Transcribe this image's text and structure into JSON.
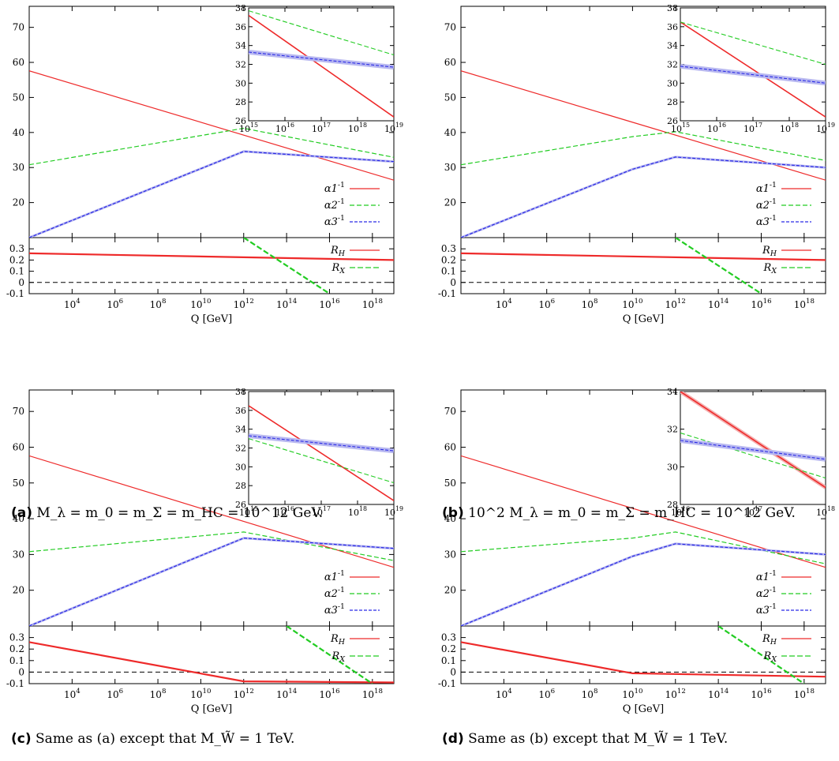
{
  "figure": {
    "xlabel": "Q [GeV]",
    "captions": [
      {
        "tag": "(a)",
        "text": "M_λ = m_0 = m_Σ = m_HC = 10^12 GeV."
      },
      {
        "tag": "(b)",
        "text": "10^2 M_λ = m_0 = m_Σ = m_HC = 10^12 GeV."
      },
      {
        "tag": "(c)",
        "text": "Same as (a) except that M_W̃ = 1 TeV."
      },
      {
        "tag": "(d)",
        "text": "Same as (b) except that M_W̃ = 1 TeV."
      }
    ]
  },
  "colors": {
    "alpha1": "#ee2a2a",
    "alpha2": "#22cc22",
    "alpha3": "#2a2ae6",
    "band": "#b8b8f0",
    "zero": "#000000"
  },
  "chart_data": [
    {
      "type": "line",
      "panel": "(a)",
      "x_scale": "log",
      "xlim": [
        100,
        1e+19
      ],
      "x_ticks": [
        "10^4",
        "10^6",
        "10^8",
        "10^10",
        "10^12",
        "10^14",
        "10^16",
        "10^18"
      ],
      "upper": {
        "ylim": [
          10,
          76
        ],
        "y_ticks": [
          "20",
          "30",
          "40",
          "50",
          "60",
          "70"
        ],
        "series": [
          {
            "name": "α1^-1",
            "x": [
              100,
              1e+19
            ],
            "y": [
              57.6,
              26.4
            ]
          },
          {
            "name": "α2^-1",
            "x": [
              100,
              1000000000000.0,
              1e+19
            ],
            "y": [
              30.8,
              41.2,
              32.9
            ]
          },
          {
            "name": "α3^-1",
            "x": [
              100,
              1000000000000.0,
              1e+19
            ],
            "y": [
              10.0,
              34.6,
              31.7
            ]
          }
        ]
      },
      "lower": {
        "ylim": [
          -0.1,
          0.4
        ],
        "y_ticks": [
          "-0.1",
          "0",
          "0.1",
          "0.2",
          "0.3"
        ],
        "series": [
          {
            "name": "R_H",
            "x": [
              100,
              1e+19
            ],
            "y": [
              0.26,
              0.2
            ]
          },
          {
            "name": "R_X",
            "x": [
              1000000000000.0,
              1e+16
            ],
            "y": [
              0.4,
              -0.1
            ]
          }
        ]
      },
      "inset": {
        "xlim": [
          1000000000000000.0,
          1e+19
        ],
        "x_ticks": [
          "10^15",
          "10^16",
          "10^17",
          "10^18",
          "10^19"
        ],
        "ylim": [
          26,
          38
        ],
        "y_ticks": [
          "26",
          "28",
          "30",
          "32",
          "34",
          "36",
          "38"
        ],
        "series": [
          {
            "name": "α1^-1",
            "x": [
              1000000000000000.0,
              1e+19
            ],
            "y": [
              37.2,
              26.4
            ]
          },
          {
            "name": "α2^-1",
            "x": [
              1000000000000000.0,
              1e+19
            ],
            "y": [
              37.7,
              33.0
            ]
          },
          {
            "name": "α3^-1",
            "x": [
              1000000000000000.0,
              1e+19
            ],
            "y": [
              33.3,
              31.7
            ]
          }
        ]
      }
    },
    {
      "type": "line",
      "panel": "(b)",
      "x_scale": "log",
      "xlim": [
        100,
        1e+19
      ],
      "x_ticks": [
        "10^4",
        "10^6",
        "10^8",
        "10^10",
        "10^12",
        "10^14",
        "10^16",
        "10^18"
      ],
      "upper": {
        "ylim": [
          10,
          76
        ],
        "y_ticks": [
          "20",
          "30",
          "40",
          "50",
          "60",
          "70"
        ],
        "series": [
          {
            "name": "α1^-1",
            "x": [
              100,
              1e+19
            ],
            "y": [
              57.6,
              26.4
            ]
          },
          {
            "name": "α2^-1",
            "x": [
              100,
              10000000000.0,
              1000000000000.0,
              1e+19
            ],
            "y": [
              30.8,
              38.8,
              40.2,
              32.0
            ]
          },
          {
            "name": "α3^-1",
            "x": [
              100,
              10000000000.0,
              1000000000000.0,
              1e+19
            ],
            "y": [
              10.0,
              29.5,
              33.0,
              30.0
            ]
          }
        ]
      },
      "lower": {
        "ylim": [
          -0.1,
          0.4
        ],
        "y_ticks": [
          "-0.1",
          "0",
          "0.1",
          "0.2",
          "0.3"
        ],
        "series": [
          {
            "name": "R_H",
            "x": [
              100,
              1e+19
            ],
            "y": [
              0.26,
              0.2
            ]
          },
          {
            "name": "R_X",
            "x": [
              1000000000000.0,
              1e+16
            ],
            "y": [
              0.4,
              -0.1
            ]
          }
        ]
      },
      "inset": {
        "xlim": [
          1000000000000000.0,
          1e+19
        ],
        "x_ticks": [
          "10^15",
          "10^16",
          "10^17",
          "10^18",
          "10^19"
        ],
        "ylim": [
          26,
          38
        ],
        "y_ticks": [
          "26",
          "28",
          "30",
          "32",
          "34",
          "36",
          "38"
        ],
        "series": [
          {
            "name": "α1^-1",
            "x": [
              1000000000000000.0,
              1e+19
            ],
            "y": [
              36.5,
              26.4
            ]
          },
          {
            "name": "α2^-1",
            "x": [
              1000000000000000.0,
              1e+19
            ],
            "y": [
              36.5,
              32.0
            ]
          },
          {
            "name": "α3^-1",
            "x": [
              1000000000000000.0,
              1e+19
            ],
            "y": [
              31.8,
              30.0
            ]
          }
        ]
      }
    },
    {
      "type": "line",
      "panel": "(c)",
      "x_scale": "log",
      "xlim": [
        100,
        1e+19
      ],
      "x_ticks": [
        "10^4",
        "10^6",
        "10^8",
        "10^10",
        "10^12",
        "10^14",
        "10^16",
        "10^18"
      ],
      "upper": {
        "ylim": [
          10,
          76
        ],
        "y_ticks": [
          "20",
          "30",
          "40",
          "50",
          "60",
          "70"
        ],
        "series": [
          {
            "name": "α1^-1",
            "x": [
              100,
              1e+19
            ],
            "y": [
              57.6,
              26.4
            ]
          },
          {
            "name": "α2^-1",
            "x": [
              100,
              1000000000000.0,
              1e+19
            ],
            "y": [
              30.8,
              36.3,
              28.3
            ]
          },
          {
            "name": "α3^-1",
            "x": [
              100,
              1000000000000.0,
              1e+19
            ],
            "y": [
              10.0,
              34.6,
              31.7
            ]
          }
        ]
      },
      "lower": {
        "ylim": [
          -0.1,
          0.4
        ],
        "y_ticks": [
          "-0.1",
          "0",
          "0.1",
          "0.2",
          "0.3"
        ],
        "series": [
          {
            "name": "R_H",
            "x": [
              100,
              1000000000000.0,
              1e+19
            ],
            "y": [
              0.26,
              -0.08,
              -0.09
            ]
          },
          {
            "name": "R_X",
            "x": [
              100000000000000.0,
              1e+18
            ],
            "y": [
              0.4,
              -0.1
            ]
          }
        ]
      },
      "inset": {
        "xlim": [
          1000000000000000.0,
          1e+19
        ],
        "x_ticks": [
          "10^15",
          "10^16",
          "10^17",
          "10^18",
          "10^19"
        ],
        "ylim": [
          26,
          38
        ],
        "y_ticks": [
          "26",
          "28",
          "30",
          "32",
          "34",
          "36",
          "38"
        ],
        "series": [
          {
            "name": "α1^-1",
            "x": [
              1000000000000000.0,
              1e+19
            ],
            "y": [
              36.5,
              26.4
            ]
          },
          {
            "name": "α2^-1",
            "x": [
              1000000000000000.0,
              1e+19
            ],
            "y": [
              33.0,
              28.3
            ]
          },
          {
            "name": "α3^-1",
            "x": [
              1000000000000000.0,
              1e+19
            ],
            "y": [
              33.3,
              31.7
            ]
          }
        ]
      }
    },
    {
      "type": "line",
      "panel": "(d)",
      "x_scale": "log",
      "xlim": [
        100,
        1e+19
      ],
      "x_ticks": [
        "10^4",
        "10^6",
        "10^8",
        "10^10",
        "10^12",
        "10^14",
        "10^16",
        "10^18"
      ],
      "upper": {
        "ylim": [
          10,
          76
        ],
        "y_ticks": [
          "20",
          "30",
          "40",
          "50",
          "60",
          "70"
        ],
        "series": [
          {
            "name": "α1^-1",
            "x": [
              100,
              1e+19
            ],
            "y": [
              57.6,
              26.4
            ]
          },
          {
            "name": "α2^-1",
            "x": [
              100,
              10000000000.0,
              1000000000000.0,
              1e+19
            ],
            "y": [
              30.8,
              34.6,
              36.3,
              27.4
            ]
          },
          {
            "name": "α3^-1",
            "x": [
              100,
              10000000000.0,
              1000000000000.0,
              1e+19
            ],
            "y": [
              10.0,
              29.5,
              33.0,
              30.0
            ]
          }
        ]
      },
      "lower": {
        "ylim": [
          -0.1,
          0.4
        ],
        "y_ticks": [
          "-0.1",
          "0",
          "0.1",
          "0.2",
          "0.3"
        ],
        "series": [
          {
            "name": "R_H",
            "x": [
              100,
              10000000000.0,
              1e+19
            ],
            "y": [
              0.26,
              -0.01,
              -0.04
            ]
          },
          {
            "name": "R_X",
            "x": [
              100000000000000.0,
              1e+18
            ],
            "y": [
              0.4,
              -0.1
            ]
          }
        ]
      },
      "inset": {
        "xlim": [
          1e+16,
          1e+18
        ],
        "x_ticks": [
          "10^16",
          "10^17",
          "10^18"
        ],
        "ylim": [
          28,
          34
        ],
        "y_ticks": [
          "28",
          "30",
          "32",
          "34"
        ],
        "series": [
          {
            "name": "α1^-1",
            "x": [
              1e+16,
              1e+18
            ],
            "y": [
              34.0,
              28.9
            ]
          },
          {
            "name": "α2^-1",
            "x": [
              1e+16,
              1e+18
            ],
            "y": [
              31.8,
              29.4
            ]
          },
          {
            "name": "α3^-1",
            "x": [
              1e+16,
              1e+18
            ],
            "y": [
              31.4,
              30.4
            ]
          }
        ]
      }
    }
  ]
}
